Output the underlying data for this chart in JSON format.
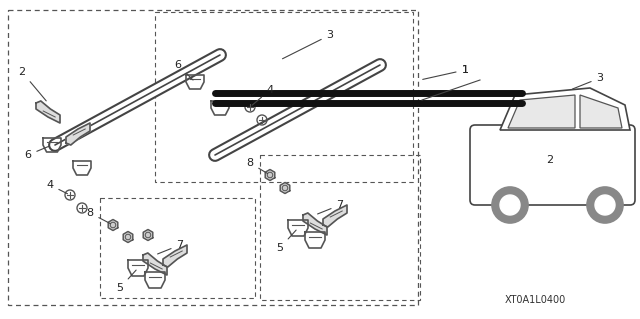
{
  "bg_color": "#ffffff",
  "border_color": "#333333",
  "diagram_code": "XT0A1L0400",
  "fig_width": 6.4,
  "fig_height": 3.19,
  "dpi": 100
}
